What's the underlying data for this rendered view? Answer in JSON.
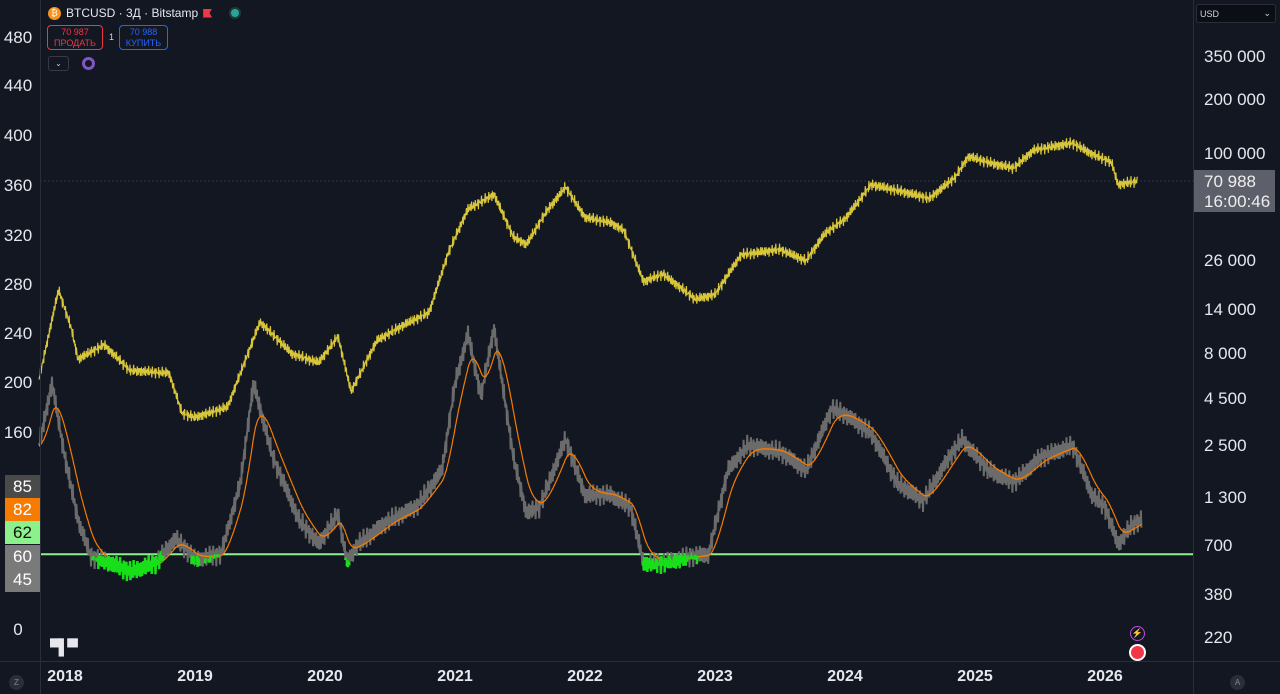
{
  "header": {
    "symbol": "BTCUSD · 3Д · Bitstamp",
    "sell_price": "70 987",
    "sell_label": "ПРОДАТЬ",
    "quantity": "1",
    "buy_price": "70 988",
    "buy_label": "КУПИТЬ",
    "toggle": "⌄",
    "coin_icon": "₿"
  },
  "currency": "USD",
  "current_price": "70 988",
  "countdown": "16:00:46",
  "colors": {
    "price": "#d8c63a",
    "indicator": "#6b6b6b",
    "smooth": "#f57c00",
    "level": "#8cf08c",
    "below": "#18e018"
  },
  "left_axis": [
    "480",
    "440",
    "400",
    "360",
    "320",
    "280",
    "240",
    "200",
    "160",
    "0"
  ],
  "right_axis": [
    "350 000",
    "200 000",
    "100 000",
    "26 000",
    "14 000",
    "8 000",
    "4 500",
    "2 500",
    "1 300",
    "700",
    "380",
    "220"
  ],
  "left_labels": [
    "85",
    "82",
    "62",
    "60",
    "45"
  ],
  "x_axis": [
    "2018",
    "2019",
    "2020",
    "2021",
    "2022",
    "2023",
    "2024",
    "2025",
    "2026"
  ],
  "logo": "TV",
  "scale_buttons": {
    "left": "Z",
    "right": "A"
  },
  "chart_data": {
    "type": "line",
    "price_series": [
      [
        2017.8,
        5800
      ],
      [
        2017.95,
        18000
      ],
      [
        2018.05,
        11000
      ],
      [
        2018.1,
        7500
      ],
      [
        2018.3,
        9000
      ],
      [
        2018.5,
        6500
      ],
      [
        2018.8,
        6300
      ],
      [
        2018.9,
        3800
      ],
      [
        2019.0,
        3600
      ],
      [
        2019.25,
        4100
      ],
      [
        2019.5,
        12000
      ],
      [
        2019.75,
        8000
      ],
      [
        2019.95,
        7200
      ],
      [
        2020.1,
        10000
      ],
      [
        2020.2,
        5000
      ],
      [
        2020.4,
        9500
      ],
      [
        2020.6,
        11500
      ],
      [
        2020.8,
        13500
      ],
      [
        2020.95,
        29000
      ],
      [
        2021.1,
        50000
      ],
      [
        2021.3,
        60000
      ],
      [
        2021.45,
        35000
      ],
      [
        2021.55,
        32000
      ],
      [
        2021.7,
        48000
      ],
      [
        2021.85,
        66000
      ],
      [
        2022.0,
        45000
      ],
      [
        2022.2,
        42000
      ],
      [
        2022.3,
        38000
      ],
      [
        2022.45,
        20000
      ],
      [
        2022.6,
        22000
      ],
      [
        2022.85,
        16000
      ],
      [
        2023.0,
        17000
      ],
      [
        2023.2,
        28000
      ],
      [
        2023.5,
        30000
      ],
      [
        2023.7,
        26000
      ],
      [
        2023.85,
        37000
      ],
      [
        2024.0,
        44000
      ],
      [
        2024.2,
        68000
      ],
      [
        2024.45,
        62000
      ],
      [
        2024.65,
        57000
      ],
      [
        2024.85,
        75000
      ],
      [
        2024.95,
        97000
      ],
      [
        2025.15,
        88000
      ],
      [
        2025.3,
        84000
      ],
      [
        2025.45,
        105000
      ],
      [
        2025.75,
        115000
      ],
      [
        2025.9,
        100000
      ],
      [
        2026.05,
        90000
      ],
      [
        2026.1,
        68000
      ],
      [
        2026.25,
        71000
      ]
    ],
    "indicator_series": [
      [
        2017.8,
        150
      ],
      [
        2017.9,
        200
      ],
      [
        2018.0,
        140
      ],
      [
        2018.1,
        90
      ],
      [
        2018.2,
        60
      ],
      [
        2018.35,
        55
      ],
      [
        2018.5,
        48
      ],
      [
        2018.7,
        55
      ],
      [
        2018.85,
        75
      ],
      [
        2019.0,
        58
      ],
      [
        2019.2,
        62
      ],
      [
        2019.35,
        120
      ],
      [
        2019.45,
        200
      ],
      [
        2019.6,
        140
      ],
      [
        2019.8,
        90
      ],
      [
        2019.95,
        70
      ],
      [
        2020.1,
        95
      ],
      [
        2020.17,
        55
      ],
      [
        2020.25,
        70
      ],
      [
        2020.5,
        90
      ],
      [
        2020.7,
        100
      ],
      [
        2020.9,
        130
      ],
      [
        2021.0,
        200
      ],
      [
        2021.1,
        240
      ],
      [
        2021.2,
        190
      ],
      [
        2021.3,
        245
      ],
      [
        2021.45,
        140
      ],
      [
        2021.55,
        95
      ],
      [
        2021.65,
        100
      ],
      [
        2021.85,
        155
      ],
      [
        2022.0,
        110
      ],
      [
        2022.2,
        110
      ],
      [
        2022.35,
        100
      ],
      [
        2022.45,
        55
      ],
      [
        2022.6,
        55
      ],
      [
        2022.8,
        60
      ],
      [
        2022.95,
        62
      ],
      [
        2023.1,
        130
      ],
      [
        2023.25,
        150
      ],
      [
        2023.5,
        145
      ],
      [
        2023.7,
        130
      ],
      [
        2023.9,
        180
      ],
      [
        2024.0,
        175
      ],
      [
        2024.2,
        160
      ],
      [
        2024.4,
        120
      ],
      [
        2024.6,
        105
      ],
      [
        2024.8,
        140
      ],
      [
        2024.9,
        155
      ],
      [
        2025.1,
        130
      ],
      [
        2025.3,
        120
      ],
      [
        2025.5,
        140
      ],
      [
        2025.75,
        150
      ],
      [
        2025.9,
        110
      ],
      [
        2026.0,
        100
      ],
      [
        2026.1,
        70
      ],
      [
        2026.2,
        85
      ],
      [
        2026.28,
        90
      ]
    ],
    "level": 62,
    "left_ylim": [
      0,
      500
    ],
    "right_scale": "log",
    "xlim": [
      2017.8,
      2026.7
    ]
  }
}
